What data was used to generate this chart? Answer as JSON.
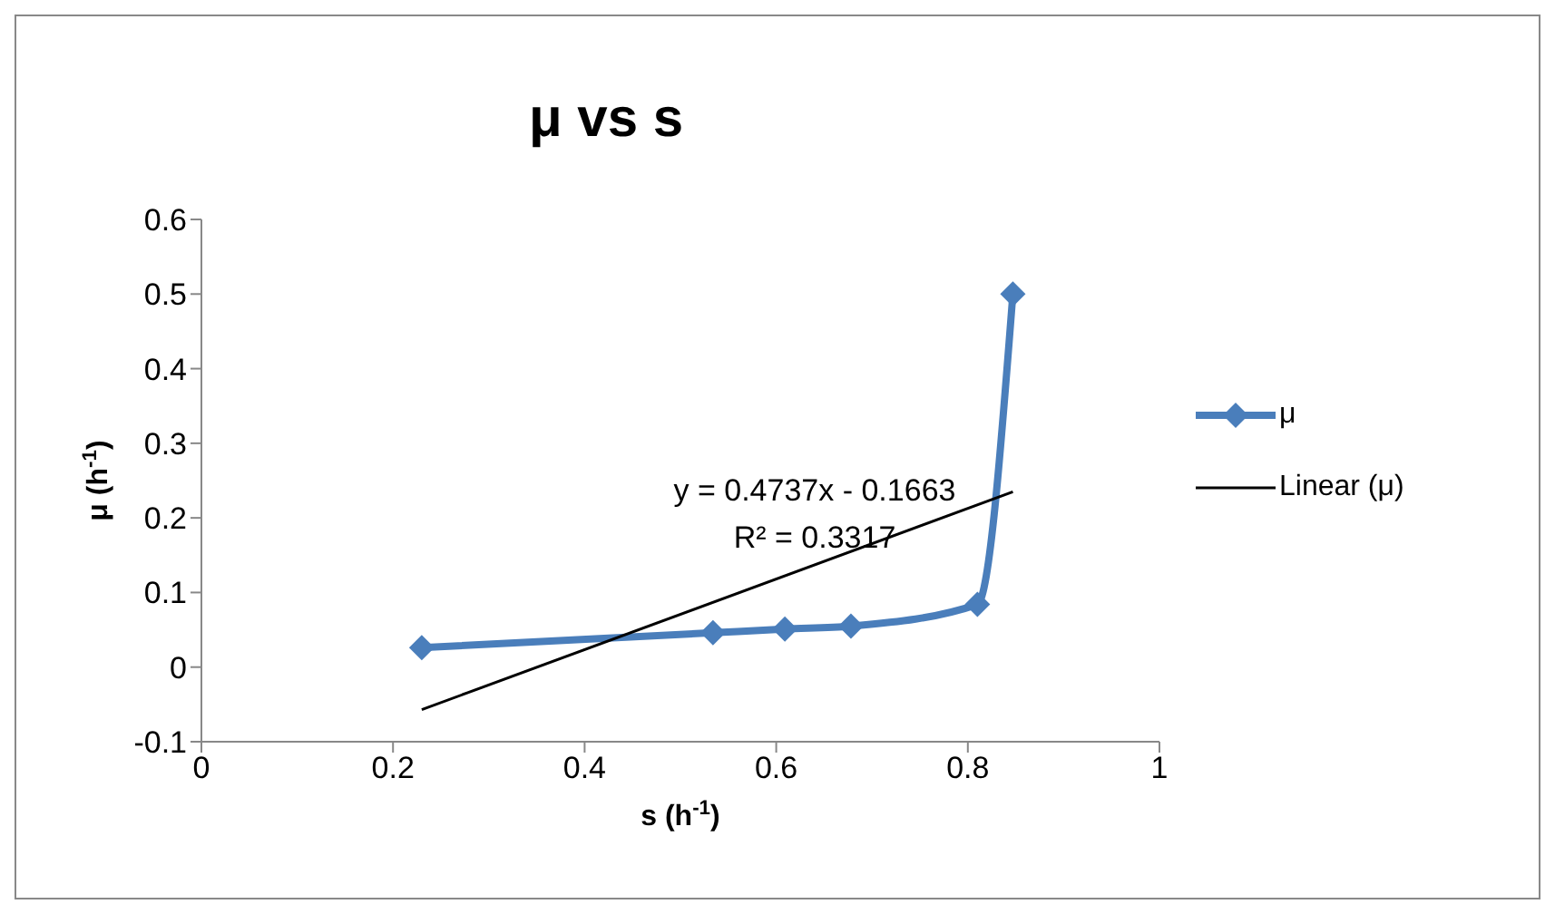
{
  "chart_data": {
    "type": "line",
    "title": "μ vs s",
    "xlabel": "s (h$^{-1}$)",
    "ylabel": "μ (h$^{-1}$)",
    "series": [
      {
        "name": "μ",
        "color": "#4a7ebb",
        "x": [
          0.23,
          0.534,
          0.609,
          0.678,
          0.81,
          0.847
        ],
        "values": [
          0.026,
          0.046,
          0.051,
          0.055,
          0.084,
          0.5
        ]
      },
      {
        "name": "Linear (μ)",
        "color": "#000000",
        "marker": "none",
        "x": [
          0.23,
          0.847
        ],
        "values": [
          -0.057,
          0.235
        ]
      }
    ],
    "xlim": [
      0,
      1
    ],
    "xticks": [
      0,
      0.2,
      0.4,
      0.6,
      0.8,
      1
    ],
    "ylim": [
      -0.1,
      0.6
    ],
    "yticks": [
      -0.1,
      0,
      0.1,
      0.2,
      0.3,
      0.4,
      0.5,
      0.6
    ],
    "annotations": [
      "y = 0.4737x - 0.1663",
      "R² = 0.3317"
    ],
    "legend": "right",
    "marker": "diamond",
    "line_style": "solid"
  }
}
